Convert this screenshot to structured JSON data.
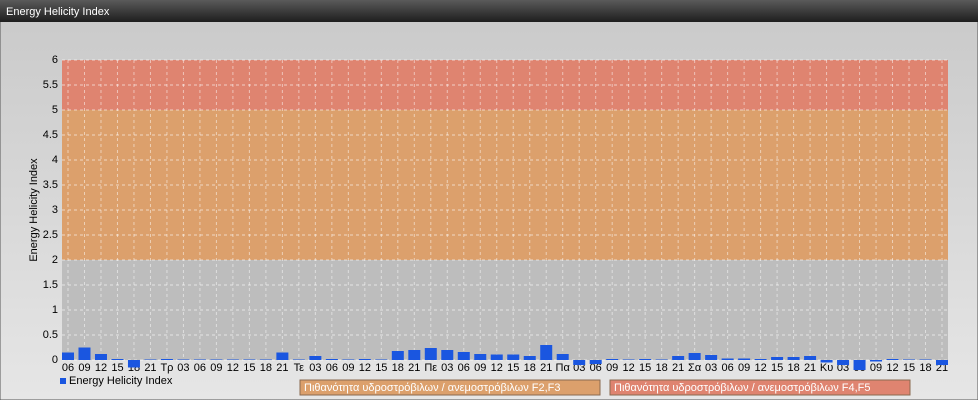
{
  "panel_title": "Energy Helicity Index",
  "chart_data": {
    "type": "bar",
    "y_label": "Energy Helicity Index",
    "categories": [
      "06",
      "09",
      "12",
      "15",
      "18",
      "21",
      "Τρ",
      "03",
      "06",
      "09",
      "12",
      "15",
      "18",
      "21",
      "Τε",
      "03",
      "06",
      "09",
      "12",
      "15",
      "18",
      "21",
      "Πε",
      "03",
      "06",
      "09",
      "12",
      "15",
      "18",
      "21",
      "Πα",
      "03",
      "06",
      "09",
      "12",
      "15",
      "18",
      "21",
      "Σα",
      "03",
      "06",
      "09",
      "12",
      "15",
      "18",
      "21",
      "Κυ",
      "03",
      "06",
      "09",
      "12",
      "15",
      "18",
      "21"
    ],
    "series": [
      {
        "name": "Energy Helicity Index",
        "color": "#1a56e0",
        "values": [
          0.15,
          0.25,
          0.12,
          0.02,
          -0.15,
          0.01,
          0.02,
          0.01,
          0.01,
          0.01,
          0.01,
          0.01,
          0.01,
          0.15,
          0.01,
          0.08,
          0.02,
          0.01,
          0.02,
          0.01,
          0.18,
          0.2,
          0.24,
          0.2,
          0.16,
          0.12,
          0.11,
          0.11,
          0.08,
          0.3,
          0.12,
          -0.1,
          -0.08,
          0.02,
          0.01,
          0.02,
          0.01,
          0.08,
          0.14,
          0.1,
          0.03,
          0.03,
          0.02,
          0.06,
          0.06,
          0.08,
          -0.05,
          -0.1,
          -0.2,
          -0.03,
          0.02,
          0.01,
          0.01,
          -0.1
        ]
      }
    ],
    "ylim": [
      0,
      6
    ],
    "yticks": [
      0,
      0.5,
      1,
      1.5,
      2,
      2.5,
      3,
      3.5,
      4,
      4.5,
      5,
      5.5,
      6
    ],
    "grid": true,
    "bands": [
      {
        "from": 0,
        "to": 2,
        "color": "#bdbdbd"
      },
      {
        "from": 2,
        "to": 5,
        "color": "#dca06c",
        "label": "Πιθανότητα υδροστρόβιλων / ανεμοστρόβιλων F2,F3"
      },
      {
        "from": 5,
        "to": 6,
        "color": "#df8470",
        "label": "Πιθανότητα υδροστρόβιλων / ανεμοστρόβιλων F4,F5"
      }
    ]
  }
}
